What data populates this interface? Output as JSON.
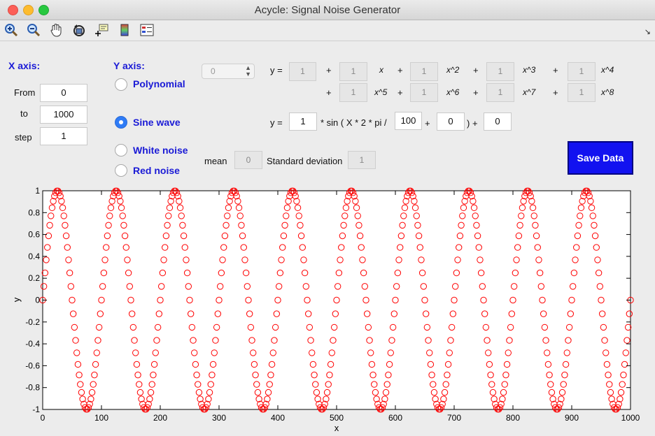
{
  "window": {
    "title": "Acycle: Signal Noise Generator"
  },
  "toolbar": {
    "icons": [
      "zoom-in-icon",
      "zoom-out-icon",
      "pan-hand-icon",
      "rotate-icon",
      "data-cursor-icon",
      "colorbar-icon",
      "legend-icon"
    ],
    "corner": "↘"
  },
  "xaxis": {
    "header": "X axis:",
    "from_label": "From",
    "from": "0",
    "to_label": "to",
    "to": "1000",
    "step_label": "step",
    "step": "1"
  },
  "yaxis": {
    "header": "Y axis:",
    "options": [
      {
        "label": "Polynomial",
        "selected": false
      },
      {
        "label": "Sine wave",
        "selected": true
      },
      {
        "label": "White noise",
        "selected": false
      },
      {
        "label": "Red noise",
        "selected": false
      }
    ]
  },
  "poly": {
    "order": "0",
    "y_label": "y =",
    "coef0": "1",
    "terms1": [
      {
        "coef": "1",
        "label": "x"
      },
      {
        "coef": "1",
        "label": "x^2"
      },
      {
        "coef": "1",
        "label": "x^3"
      },
      {
        "coef": "1",
        "label": "x^4"
      }
    ],
    "terms2": [
      {
        "coef": "1",
        "label": "x^5"
      },
      {
        "coef": "1",
        "label": "x^6"
      },
      {
        "coef": "1",
        "label": "x^7"
      },
      {
        "coef": "1",
        "label": "x^8"
      }
    ],
    "plus": "+"
  },
  "sine": {
    "y_label": "y =",
    "amp": "1",
    "text1": "* sin ( X * 2 * pi /",
    "period": "100",
    "plus1": "+",
    "phase": "0",
    "text2": ") +",
    "offset": "0"
  },
  "noise": {
    "mean_label": "mean",
    "mean": "0",
    "sd_label": "Standard deviation",
    "sd": "1"
  },
  "save_label": "Save Data",
  "chart_data": {
    "type": "scatter",
    "marker": "open-circle",
    "color": "#ff0000",
    "function": "y = 1 * sin(x * 2 * pi / 100) + 0",
    "x_range": [
      0,
      1000
    ],
    "x_step": 1,
    "period": 100,
    "amplitude": 1,
    "xlabel": "x",
    "ylabel": "y",
    "xlim": [
      0,
      1000
    ],
    "ylim": [
      -1,
      1
    ],
    "xticks": [
      "0",
      "100",
      "200",
      "300",
      "400",
      "500",
      "600",
      "700",
      "800",
      "900",
      "1000"
    ],
    "yticks": [
      "-1",
      "-0.8",
      "-0.6",
      "-0.4",
      "-0.2",
      "0",
      "0.2",
      "0.4",
      "0.6",
      "0.8",
      "1"
    ]
  }
}
